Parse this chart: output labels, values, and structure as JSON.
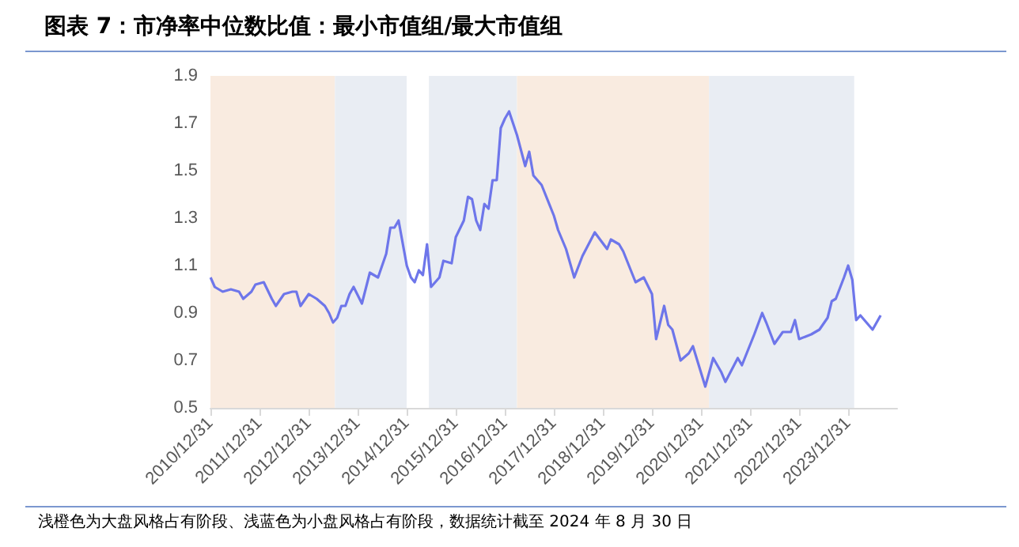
{
  "chart_data": {
    "type": "line",
    "title": "图表 7：市净率中位数比值：最小市值组/最大市值组",
    "annotations": [
      "浅橙色为大盘风格占有阶段、浅蓝色为小盘风格占有阶段，数据统计截至 2024 年 8 月 30 日"
    ],
    "x": [
      "2011-01",
      "2011-02",
      "2011-04",
      "2011-06",
      "2011-08",
      "2011-09",
      "2011-11",
      "2011-12",
      "2012-02",
      "2012-04",
      "2012-05",
      "2012-07",
      "2012-09",
      "2012-10",
      "2012-11",
      "2013-01",
      "2013-03",
      "2013-05",
      "2013-06",
      "2013-07",
      "2013-08",
      "2013-09",
      "2013-10",
      "2013-11",
      "2013-12",
      "2014-02",
      "2014-04",
      "2014-06",
      "2014-08",
      "2014-09",
      "2014-10",
      "2014-11",
      "2015-01",
      "2015-02",
      "2015-03",
      "2015-04",
      "2015-05",
      "2015-06",
      "2015-07",
      "2015-09",
      "2015-10",
      "2015-12",
      "2016-01",
      "2016-03",
      "2016-04",
      "2016-05",
      "2016-06",
      "2016-07",
      "2016-08",
      "2016-09",
      "2016-10",
      "2016-11",
      "2016-12",
      "2017-01",
      "2017-02",
      "2017-04",
      "2017-06",
      "2017-07",
      "2017-08",
      "2017-10",
      "2018-01",
      "2018-02",
      "2018-04",
      "2018-06",
      "2018-08",
      "2018-11",
      "2019-02",
      "2019-03",
      "2019-05",
      "2019-06",
      "2019-09",
      "2019-11",
      "2020-01",
      "2020-02",
      "2020-04",
      "2020-05",
      "2020-06",
      "2020-08",
      "2020-10",
      "2020-11",
      "2021-02",
      "2021-04",
      "2021-06",
      "2021-07",
      "2021-10",
      "2021-11",
      "2022-02",
      "2022-04",
      "2022-05",
      "2022-07",
      "2022-09",
      "2022-11",
      "2022-12",
      "2023-01",
      "2023-04",
      "2023-06",
      "2023-08",
      "2023-09",
      "2023-10",
      "2023-12",
      "2024-01",
      "2024-02",
      "2024-03",
      "2024-04",
      "2024-07",
      "2024-08-30"
    ],
    "series": [
      {
        "color": "#6e76ea",
        "values": [
          1.05,
          1.01,
          0.99,
          1.0,
          0.99,
          0.96,
          0.99,
          1.02,
          1.03,
          0.96,
          0.93,
          0.98,
          0.99,
          0.99,
          0.93,
          0.98,
          0.96,
          0.93,
          0.9,
          0.86,
          0.88,
          0.93,
          0.93,
          0.98,
          1.01,
          0.94,
          1.07,
          1.05,
          1.15,
          1.26,
          1.26,
          1.29,
          1.1,
          1.05,
          1.03,
          1.08,
          1.06,
          1.19,
          1.01,
          1.05,
          1.12,
          1.11,
          1.22,
          1.29,
          1.39,
          1.38,
          1.29,
          1.25,
          1.36,
          1.34,
          1.46,
          1.46,
          1.68,
          1.72,
          1.75,
          1.65,
          1.52,
          1.58,
          1.48,
          1.44,
          1.31,
          1.25,
          1.17,
          1.05,
          1.14,
          1.24,
          1.17,
          1.21,
          1.19,
          1.16,
          1.03,
          1.05,
          0.98,
          0.79,
          0.93,
          0.85,
          0.83,
          0.7,
          0.73,
          0.76,
          0.59,
          0.71,
          0.65,
          0.61,
          0.71,
          0.68,
          0.81,
          0.9,
          0.86,
          0.77,
          0.82,
          0.82,
          0.87,
          0.79,
          0.81,
          0.83,
          0.88,
          0.95,
          0.96,
          1.05,
          1.1,
          1.04,
          0.87,
          0.89,
          0.83,
          0.89
        ]
      }
    ],
    "xlim": [
      "2010-12-31",
      "2024-12-31"
    ],
    "xticks": [
      {
        "value": "2010-12-31",
        "label": "2010/12/31"
      },
      {
        "value": "2011-12-31",
        "label": "2011/12/31"
      },
      {
        "value": "2012-12-31",
        "label": "2012/12/31"
      },
      {
        "value": "2013-12-31",
        "label": "2013/12/31"
      },
      {
        "value": "2014-12-31",
        "label": "2014/12/31"
      },
      {
        "value": "2015-12-31",
        "label": "2015/12/31"
      },
      {
        "value": "2016-12-31",
        "label": "2016/12/31"
      },
      {
        "value": "2017-12-31",
        "label": "2017/12/31"
      },
      {
        "value": "2018-12-31",
        "label": "2018/12/31"
      },
      {
        "value": "2019-12-31",
        "label": "2019/12/31"
      },
      {
        "value": "2020-12-31",
        "label": "2020/12/31"
      },
      {
        "value": "2021-12-31",
        "label": "2021/12/31"
      },
      {
        "value": "2022-12-31",
        "label": "2022/12/31"
      },
      {
        "value": "2023-12-31",
        "label": "2023/12/31"
      }
    ],
    "ylim": [
      0.5,
      1.9
    ],
    "yticks": [
      0.5,
      0.7,
      0.9,
      1.1,
      1.3,
      1.5,
      1.7,
      1.9
    ],
    "bands": [
      {
        "axis": "x",
        "from": "2010-12-31",
        "to": "2013-07-15",
        "color": "#f9ebe0"
      },
      {
        "axis": "x",
        "from": "2013-07-15",
        "to": "2014-12-31",
        "color": "#e9edf3"
      },
      {
        "axis": "x",
        "from": "2015-06-15",
        "to": "2017-04-01",
        "color": "#e9edf3"
      },
      {
        "axis": "x",
        "from": "2017-04-01",
        "to": "2021-03-01",
        "color": "#f9ebe0"
      },
      {
        "axis": "x",
        "from": "2021-03-01",
        "to": "2024-02-15",
        "color": "#e9edf3"
      }
    ],
    "grid": false,
    "marker": "none",
    "line_style": "solid"
  }
}
